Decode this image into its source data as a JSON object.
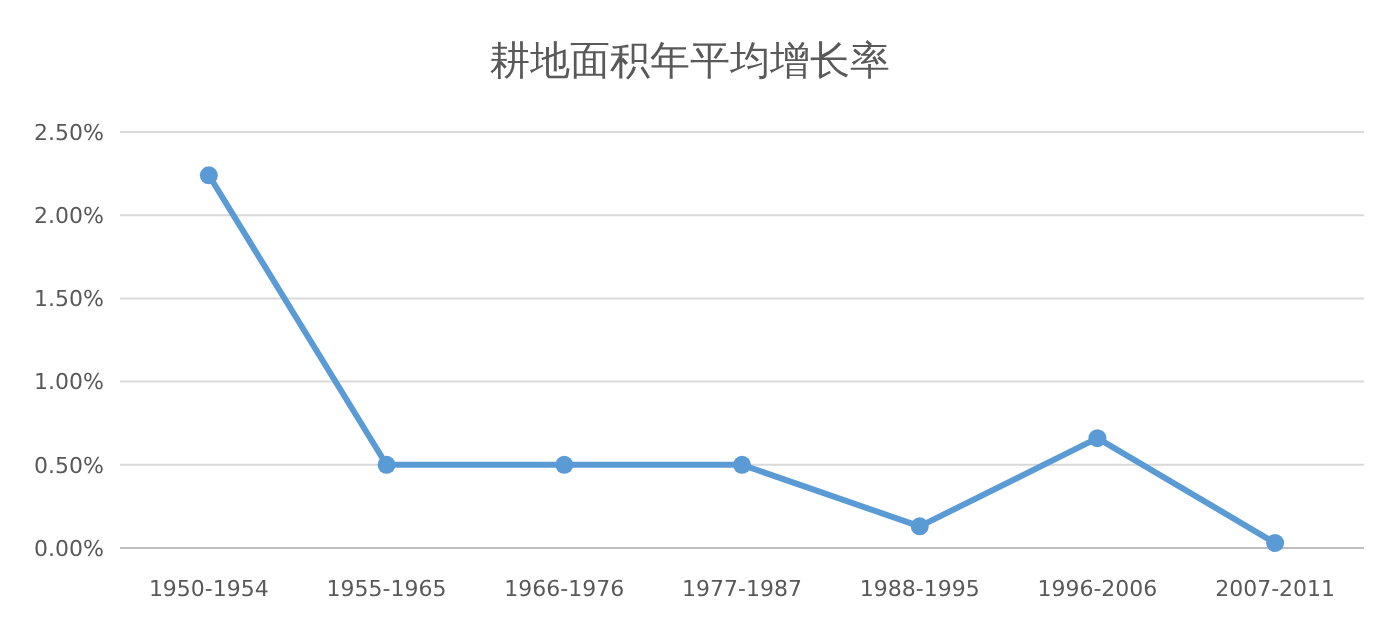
{
  "chart_data": {
    "type": "line",
    "title": "耕地面积年平均增长率",
    "categories": [
      "1950-1954",
      "1955-1965",
      "1966-1976",
      "1977-1987",
      "1988-1995",
      "1996-2006",
      "2007-2011"
    ],
    "series": [
      {
        "color": "#5b9bd5",
        "values": [
          2.24,
          0.5,
          0.5,
          0.5,
          0.13,
          0.66,
          0.03
        ]
      }
    ],
    "ylim": [
      0,
      2.5
    ],
    "yticks": [
      {
        "value": 0,
        "label": "0.00%"
      },
      {
        "value": 0.5,
        "label": "0.50%"
      },
      {
        "value": 1,
        "label": "1.00%"
      },
      {
        "value": 1.5,
        "label": "1.50%"
      },
      {
        "value": 2,
        "label": "2.00%"
      },
      {
        "value": 2.5,
        "label": "2.50%"
      }
    ],
    "grid": "y",
    "marker": "circle"
  }
}
